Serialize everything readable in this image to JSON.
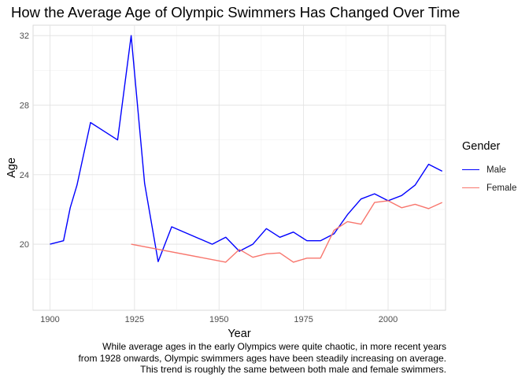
{
  "chart_data": {
    "type": "line",
    "title": "How the Average Age of Olympic Swimmers Has Changed Over Time",
    "xlabel": "Year",
    "ylabel": "Age",
    "xlim": [
      1895,
      2017
    ],
    "ylim": [
      16.2,
      32.6
    ],
    "x_ticks": [
      1900,
      1925,
      1950,
      1975,
      2000
    ],
    "y_ticks": [
      20,
      24,
      28,
      32
    ],
    "grid": true,
    "legend_title": "Gender",
    "legend_position": "right",
    "caption": [
      "While average ages in the early Olympics were quite chaotic, in more recent years",
      "from 1928 onwards, Olympic swimmers ages have been steadily increasing on average.",
      "This trend is roughly the same between both male and female swimmers."
    ],
    "series": [
      {
        "name": "Male",
        "color": "#0000ff",
        "x": [
          1900,
          1904,
          1906,
          1908,
          1912,
          1920,
          1924,
          1928,
          1932,
          1936,
          1948,
          1952,
          1956,
          1960,
          1964,
          1968,
          1972,
          1976,
          1980,
          1984,
          1988,
          1992,
          1996,
          2000,
          2004,
          2008,
          2012,
          2016
        ],
        "y": [
          20.0,
          20.2,
          22.1,
          23.4,
          27.0,
          26.0,
          32.0,
          23.5,
          19.0,
          21.0,
          20.0,
          20.4,
          19.6,
          20.0,
          20.9,
          20.4,
          20.7,
          20.2,
          20.2,
          20.6,
          21.7,
          22.6,
          22.9,
          22.5,
          22.8,
          23.4,
          24.6,
          24.2
        ]
      },
      {
        "name": "Female",
        "color": "#f8766d",
        "x": [
          1924,
          1952,
          1956,
          1960,
          1964,
          1968,
          1972,
          1976,
          1980,
          1984,
          1988,
          1992,
          1996,
          2000,
          2004,
          2008,
          2012,
          2016
        ],
        "y": [
          20.0,
          18.97,
          19.7,
          19.25,
          19.45,
          19.5,
          18.97,
          19.2,
          19.2,
          20.8,
          21.3,
          21.15,
          22.4,
          22.5,
          22.1,
          22.3,
          22.05,
          22.4
        ]
      }
    ]
  }
}
